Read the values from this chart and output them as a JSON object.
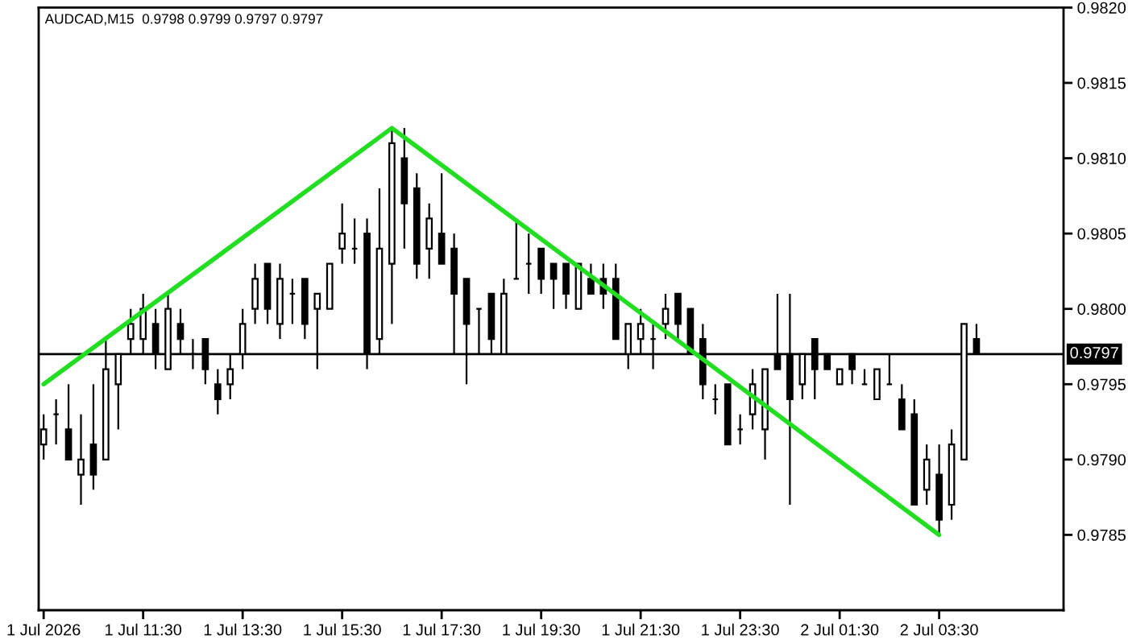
{
  "chart_data": {
    "type": "candlestick",
    "title": "AUDCAD,M15  0.9798 0.9799 0.9797 0.9797",
    "x": [
      "2026-07-01T09:30",
      "2026-07-01T09:45",
      "2026-07-01T10:00",
      "2026-07-01T10:15",
      "2026-07-01T10:30",
      "2026-07-01T10:45",
      "2026-07-01T11:00",
      "2026-07-01T11:15",
      "2026-07-01T11:30",
      "2026-07-01T11:45",
      "2026-07-01T12:00",
      "2026-07-01T12:15",
      "2026-07-01T12:30",
      "2026-07-01T12:45",
      "2026-07-01T13:00",
      "2026-07-01T13:15",
      "2026-07-01T13:30",
      "2026-07-01T13:45",
      "2026-07-01T14:00",
      "2026-07-01T14:15",
      "2026-07-01T14:30",
      "2026-07-01T14:45",
      "2026-07-01T15:00",
      "2026-07-01T15:15",
      "2026-07-01T15:30",
      "2026-07-01T15:45",
      "2026-07-01T16:00",
      "2026-07-01T16:15",
      "2026-07-01T16:30",
      "2026-07-01T16:45",
      "2026-07-01T17:00",
      "2026-07-01T17:15",
      "2026-07-01T17:30",
      "2026-07-01T17:45",
      "2026-07-01T18:00",
      "2026-07-01T18:15",
      "2026-07-01T18:30",
      "2026-07-01T18:45",
      "2026-07-01T19:00",
      "2026-07-01T19:15",
      "2026-07-01T19:30",
      "2026-07-01T19:45",
      "2026-07-01T20:00",
      "2026-07-01T20:15",
      "2026-07-01T20:30",
      "2026-07-01T20:45",
      "2026-07-01T21:00",
      "2026-07-01T21:15",
      "2026-07-01T21:30",
      "2026-07-01T21:45",
      "2026-07-01T22:00",
      "2026-07-01T22:15",
      "2026-07-01T22:30",
      "2026-07-01T22:45",
      "2026-07-01T23:00",
      "2026-07-01T23:15",
      "2026-07-01T23:30",
      "2026-07-01T23:45",
      "2026-07-02T00:00",
      "2026-07-02T00:15",
      "2026-07-02T00:30",
      "2026-07-02T00:45",
      "2026-07-02T01:00",
      "2026-07-02T01:15",
      "2026-07-02T01:30",
      "2026-07-02T01:45",
      "2026-07-02T02:00",
      "2026-07-02T02:15",
      "2026-07-02T02:30",
      "2026-07-02T02:45",
      "2026-07-02T03:00",
      "2026-07-02T03:15",
      "2026-07-02T03:30",
      "2026-07-02T03:45",
      "2026-07-02T04:00",
      "2026-07-02T04:15"
    ],
    "ohlc": [
      [
        0.9791,
        0.9793,
        0.979,
        0.9792
      ],
      [
        0.9793,
        0.9794,
        0.9791,
        0.9793
      ],
      [
        0.9792,
        0.9795,
        0.979,
        0.979
      ],
      [
        0.9789,
        0.9793,
        0.9787,
        0.979
      ],
      [
        0.9791,
        0.9795,
        0.9788,
        0.9789
      ],
      [
        0.979,
        0.9798,
        0.979,
        0.9796
      ],
      [
        0.9795,
        0.9797,
        0.9792,
        0.9797
      ],
      [
        0.9798,
        0.98,
        0.9797,
        0.9799
      ],
      [
        0.9798,
        0.9801,
        0.9797,
        0.98
      ],
      [
        0.9799,
        0.98,
        0.9796,
        0.9797
      ],
      [
        0.9796,
        0.9801,
        0.9796,
        0.98
      ],
      [
        0.9799,
        0.98,
        0.9797,
        0.9798
      ],
      [
        0.9797,
        0.9798,
        0.9796,
        0.9797
      ],
      [
        0.9798,
        0.9798,
        0.9795,
        0.9796
      ],
      [
        0.9795,
        0.9796,
        0.9793,
        0.9794
      ],
      [
        0.9795,
        0.9797,
        0.9794,
        0.9796
      ],
      [
        0.9797,
        0.98,
        0.9796,
        0.9799
      ],
      [
        0.98,
        0.9803,
        0.9799,
        0.9802
      ],
      [
        0.9803,
        0.9803,
        0.9799,
        0.98
      ],
      [
        0.9799,
        0.9803,
        0.9798,
        0.9802
      ],
      [
        0.9801,
        0.9802,
        0.9799,
        0.9801
      ],
      [
        0.9802,
        0.9802,
        0.9798,
        0.9799
      ],
      [
        0.98,
        0.9801,
        0.9796,
        0.9801
      ],
      [
        0.98,
        0.9803,
        0.98,
        0.9803
      ],
      [
        0.9804,
        0.9807,
        0.9803,
        0.9805
      ],
      [
        0.9804,
        0.9806,
        0.9803,
        0.9804
      ],
      [
        0.9805,
        0.9806,
        0.9796,
        0.9797
      ],
      [
        0.9798,
        0.9808,
        0.9797,
        0.9804
      ],
      [
        0.9803,
        0.9812,
        0.9799,
        0.9811
      ],
      [
        0.981,
        0.9812,
        0.9804,
        0.9807
      ],
      [
        0.9808,
        0.9809,
        0.9802,
        0.9803
      ],
      [
        0.9804,
        0.9807,
        0.9802,
        0.9806
      ],
      [
        0.9805,
        0.9809,
        0.9803,
        0.9803
      ],
      [
        0.9804,
        0.9805,
        0.9797,
        0.9801
      ],
      [
        0.9802,
        0.9802,
        0.9795,
        0.9799
      ],
      [
        0.98,
        0.98,
        0.9797,
        0.98
      ],
      [
        0.9801,
        0.9801,
        0.9797,
        0.9798
      ],
      [
        0.9797,
        0.9802,
        0.9797,
        0.9801
      ],
      [
        0.9802,
        0.9806,
        0.9802,
        0.9802
      ],
      [
        0.9803,
        0.9805,
        0.9801,
        0.9803
      ],
      [
        0.9804,
        0.9804,
        0.9801,
        0.9802
      ],
      [
        0.9803,
        0.9803,
        0.98,
        0.9802
      ],
      [
        0.9803,
        0.9803,
        0.98,
        0.9801
      ],
      [
        0.98,
        0.9803,
        0.98,
        0.9803
      ],
      [
        0.9802,
        0.9803,
        0.9801,
        0.9801
      ],
      [
        0.9802,
        0.9803,
        0.98,
        0.9801
      ],
      [
        0.9802,
        0.9803,
        0.9798,
        0.9798
      ],
      [
        0.9797,
        0.9799,
        0.9796,
        0.9799
      ],
      [
        0.9798,
        0.98,
        0.9797,
        0.9799
      ],
      [
        0.9798,
        0.9799,
        0.9796,
        0.9798
      ],
      [
        0.9799,
        0.9801,
        0.9798,
        0.98
      ],
      [
        0.9801,
        0.9801,
        0.9798,
        0.9799
      ],
      [
        0.98,
        0.98,
        0.9797,
        0.9797
      ],
      [
        0.9798,
        0.9799,
        0.9794,
        0.9795
      ],
      [
        0.9794,
        0.9795,
        0.9793,
        0.9794
      ],
      [
        0.9795,
        0.9795,
        0.9791,
        0.9791
      ],
      [
        0.9792,
        0.9793,
        0.9791,
        0.9792
      ],
      [
        0.9793,
        0.9796,
        0.9792,
        0.9795
      ],
      [
        0.9792,
        0.9796,
        0.979,
        0.9796
      ],
      [
        0.9797,
        0.9801,
        0.9796,
        0.9796
      ],
      [
        0.9797,
        0.9801,
        0.9787,
        0.9794
      ],
      [
        0.9795,
        0.9797,
        0.9794,
        0.9797
      ],
      [
        0.9798,
        0.9798,
        0.9794,
        0.9796
      ],
      [
        0.9797,
        0.9797,
        0.9796,
        0.9796
      ],
      [
        0.9795,
        0.9796,
        0.9795,
        0.9796
      ],
      [
        0.9797,
        0.9797,
        0.9795,
        0.9796
      ],
      [
        0.9795,
        0.9796,
        0.9795,
        0.9795
      ],
      [
        0.9794,
        0.9796,
        0.9794,
        0.9796
      ],
      [
        0.9795,
        0.9797,
        0.9795,
        0.9795
      ],
      [
        0.9794,
        0.9795,
        0.9792,
        0.9792
      ],
      [
        0.9793,
        0.9794,
        0.9787,
        0.9787
      ],
      [
        0.9788,
        0.9791,
        0.9787,
        0.979
      ],
      [
        0.9789,
        0.9791,
        0.9785,
        0.9786
      ],
      [
        0.9787,
        0.9792,
        0.9786,
        0.9791
      ],
      [
        0.979,
        0.9799,
        0.979,
        0.9799
      ],
      [
        0.9798,
        0.9799,
        0.9797,
        0.9797
      ]
    ],
    "color": "#000000",
    "series": [
      {
        "type": "line",
        "x": [
          "2026-07-01T09:30",
          "2026-07-01T16:30",
          "2026-07-02T03:30"
        ],
        "values": [
          0.9795,
          0.9812,
          0.9785
        ],
        "color": "#22dd22"
      }
    ],
    "ref_lines": [
      {
        "axis": "y",
        "value": 0.9797,
        "label": "0.9797",
        "color": "#000000"
      }
    ],
    "xlim": [
      "2026-07-01T09:24",
      "2026-07-02T06:00"
    ],
    "xticks": [
      {
        "value": "2026-07-01T09:30",
        "label": "1 Jul 2026"
      },
      {
        "value": "2026-07-01T11:30",
        "label": "1 Jul 11:30"
      },
      {
        "value": "2026-07-01T13:30",
        "label": "1 Jul 13:30"
      },
      {
        "value": "2026-07-01T15:30",
        "label": "1 Jul 15:30"
      },
      {
        "value": "2026-07-01T17:30",
        "label": "1 Jul 17:30"
      },
      {
        "value": "2026-07-01T19:30",
        "label": "1 Jul 19:30"
      },
      {
        "value": "2026-07-01T21:30",
        "label": "1 Jul 21:30"
      },
      {
        "value": "2026-07-01T23:30",
        "label": "1 Jul 23:30"
      },
      {
        "value": "2026-07-02T01:30",
        "label": "2 Jul 01:30"
      },
      {
        "value": "2026-07-02T03:30",
        "label": "2 Jul 03:30"
      }
    ],
    "ylim": [
      0.978,
      0.982
    ],
    "yticks": [
      0.9785,
      {
        "value": 0.979,
        "label": "0.9790"
      },
      0.9795,
      {
        "value": 0.98,
        "label": "0.9800"
      },
      0.9805,
      {
        "value": 0.981,
        "label": "0.9810"
      },
      0.9815,
      {
        "value": 0.982,
        "label": "0.9820"
      }
    ]
  }
}
